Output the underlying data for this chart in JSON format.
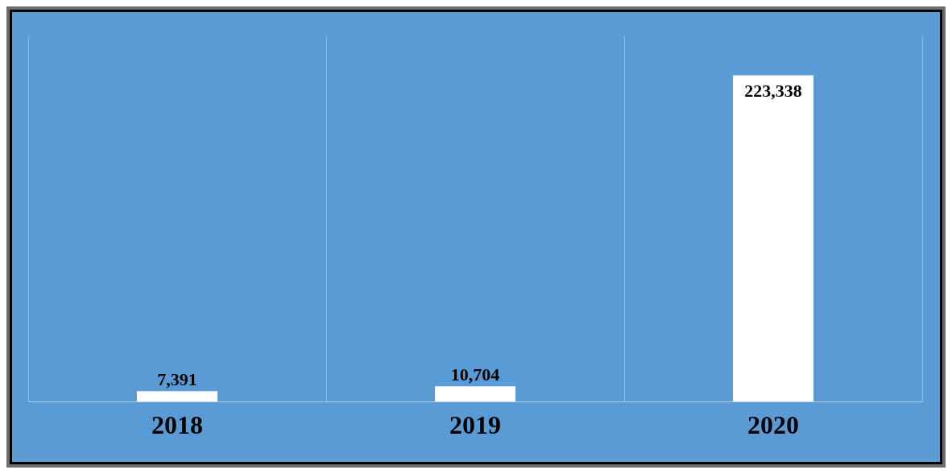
{
  "chart_data": {
    "type": "bar",
    "categories": [
      "2018",
      "2019",
      "2020"
    ],
    "values": [
      7391,
      10704,
      223338
    ],
    "value_labels": [
      "7,391",
      "10,704",
      "223,338"
    ],
    "color": "#ffffff",
    "grid": "x",
    "legend": false
  }
}
